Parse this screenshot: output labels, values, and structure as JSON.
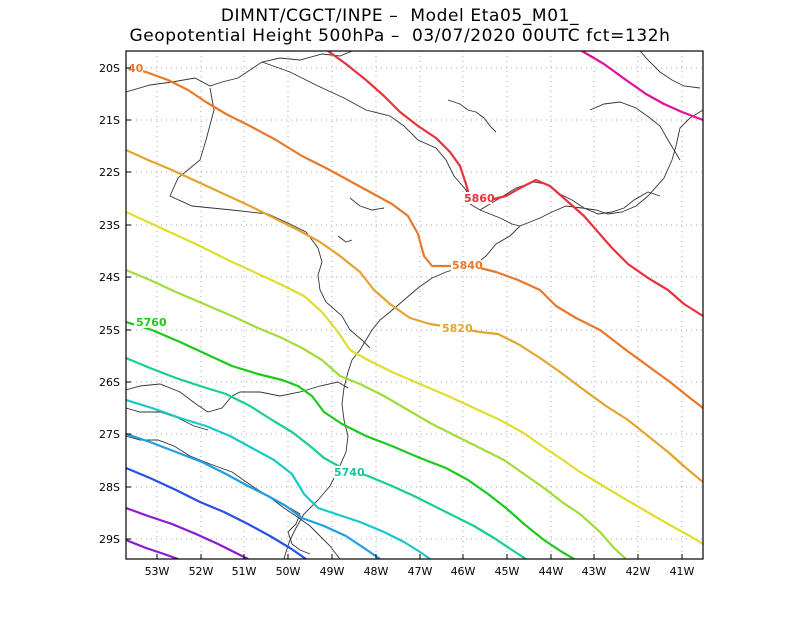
{
  "title": {
    "line1": "DIMNT/CGCT/INPE –  Model Eta05_M01_",
    "line2": "Geopotential Height 500hPa –  03/07/2020 00UTC fct=132h"
  },
  "map": {
    "lon_range": [
      -53.6,
      -40.5
    ],
    "lat_range": [
      -29.4,
      -19.5
    ],
    "x_ticks": [
      "53W",
      "52W",
      "51W",
      "50W",
      "49W",
      "48W",
      "47W",
      "46W",
      "45W",
      "44W",
      "43W",
      "42W",
      "41W"
    ],
    "y_ticks": [
      "20S",
      "21S",
      "22S",
      "23S",
      "24S",
      "25S",
      "26S",
      "27S",
      "28S",
      "29S"
    ],
    "grid": "dotted",
    "contour_labels": [
      {
        "text": "5860",
        "color": "#e8323c"
      },
      {
        "text": "5840",
        "color": "#e8782a"
      },
      {
        "text": "5820",
        "color": "#e3a42e"
      },
      {
        "text": "5760",
        "color": "#1ec81e"
      },
      {
        "text": "5740",
        "color": "#10c8a0"
      },
      {
        "text": "40",
        "color": "#e8782a"
      }
    ],
    "contour_colors": [
      "#e0109a",
      "#e8323c",
      "#e8782a",
      "#e3a42e",
      "#dede30",
      "#a0dc3a",
      "#1ec81e",
      "#18d08c",
      "#18c8c8",
      "#1e9ee6",
      "#2850e6",
      "#8c18d0"
    ]
  }
}
